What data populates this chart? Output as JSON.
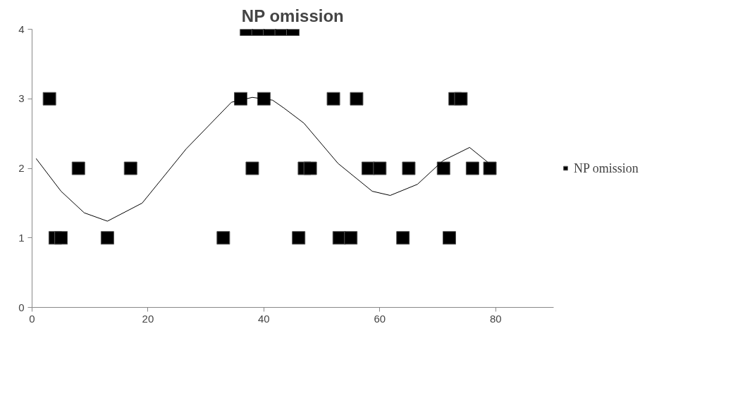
{
  "chart_data": {
    "type": "scatter",
    "title": "NP omission",
    "marker": "square",
    "legend": "right",
    "grid": false,
    "xlim": [
      0,
      90
    ],
    "xticks": [
      0,
      20,
      40,
      60,
      80
    ],
    "ylim": [
      0,
      4
    ],
    "yticks": [
      0,
      1,
      2,
      3,
      4
    ],
    "series": [
      {
        "name": "NP omission",
        "color": "#000000",
        "x": [
          3,
          4,
          5,
          8,
          13,
          17,
          33,
          36,
          37,
          38,
          39,
          40,
          41,
          43,
          45,
          46,
          47,
          48,
          52,
          53,
          55,
          56,
          58,
          60,
          64,
          65,
          71,
          72,
          73,
          74,
          76,
          79
        ],
        "values": [
          3,
          1,
          1,
          2,
          1,
          2,
          1,
          3,
          4,
          2,
          4,
          3,
          4,
          4,
          4,
          1,
          2,
          2,
          3,
          1,
          1,
          3,
          2,
          2,
          1,
          2,
          2,
          1,
          3,
          3,
          2,
          2
        ]
      },
      {
        "type": "line",
        "marker": "none",
        "color": "#000000",
        "x": [
          0.7,
          5,
          9,
          13,
          19,
          26.6,
          34.4,
          38,
          41.5,
          43.4,
          46.9,
          52.8,
          58.7,
          61.8,
          66.5,
          70.9,
          75.5,
          78.6
        ],
        "values": [
          2.14,
          1.67,
          1.36,
          1.24,
          1.5,
          2.28,
          2.95,
          3.02,
          2.98,
          2.87,
          2.65,
          2.07,
          1.67,
          1.61,
          1.77,
          2.11,
          2.3,
          2.09
        ]
      }
    ]
  }
}
